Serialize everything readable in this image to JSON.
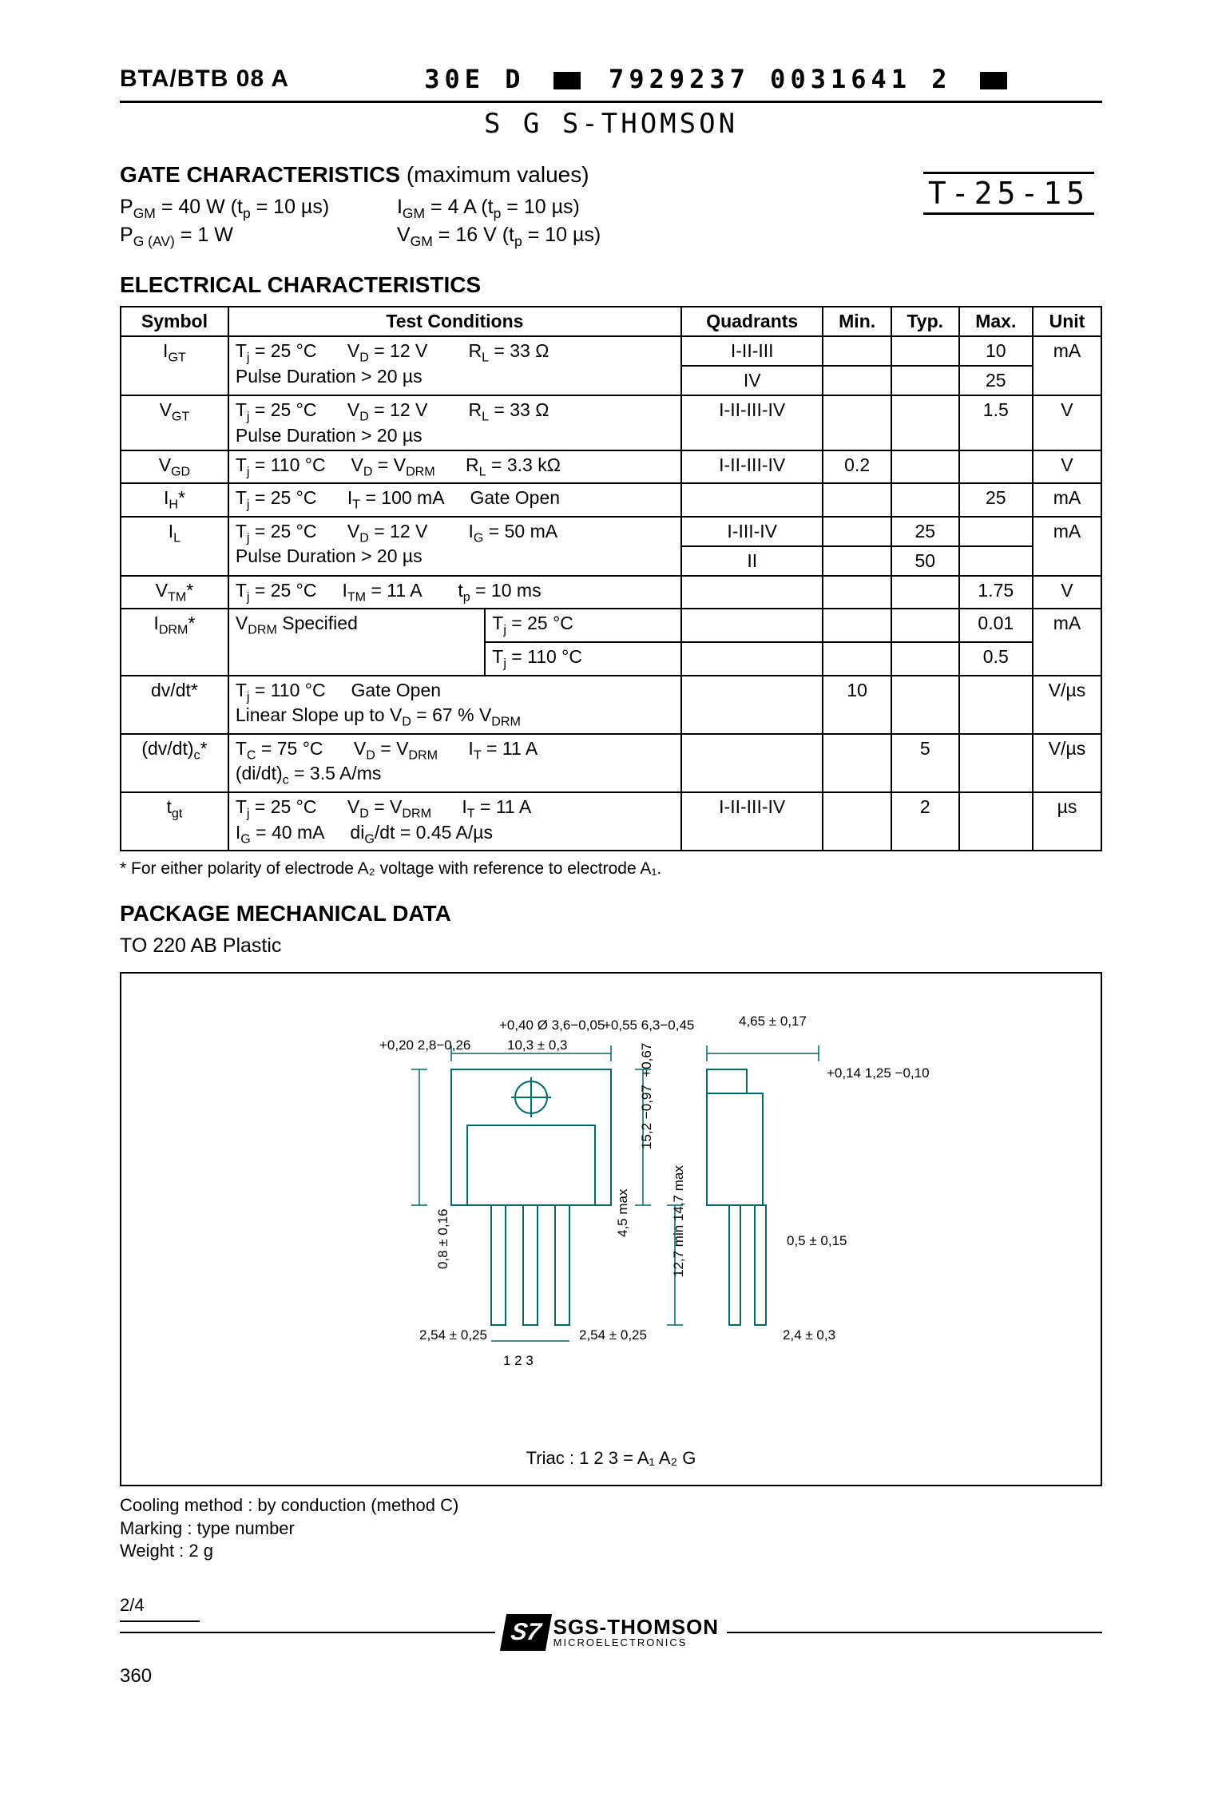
{
  "header": {
    "part": "BTA/BTB 08 A",
    "code_a": "30E  D",
    "code_b": "7929237 0031641 2",
    "brand_scan": "S G S-THOMSON",
    "tcode": "T-25-15"
  },
  "gate": {
    "title": "GATE CHARACTERISTICS",
    "subtitle": "(maximum values)",
    "pgm": "P<sub>GM</sub> = 40 W (t<sub>p</sub> = 10 µs)",
    "pgav": "P<sub>G (AV)</sub> = 1 W",
    "igm": "I<sub>GM</sub> = 4 A (t<sub>p</sub> = 10 µs)",
    "vgm": "V<sub>GM</sub> = 16 V (t<sub>p</sub> = 10 µs)"
  },
  "elec_title": "ELECTRICAL  CHARACTERISTICS",
  "elec_headers": [
    "Symbol",
    "Test Conditions",
    "Quadrants",
    "Min.",
    "Typ.",
    "Max.",
    "Unit"
  ],
  "rows": [
    {
      "sym": "I<sub>GT</sub>",
      "cond": "T<sub>j</sub> = 25 °C&nbsp;&nbsp;&nbsp;&nbsp;&nbsp;&nbsp;V<sub>D</sub> = 12 V&nbsp;&nbsp;&nbsp;&nbsp;&nbsp;&nbsp;&nbsp;&nbsp;R<sub>L</sub> = 33 Ω<br>Pulse Duration > 20 µs",
      "quad": "I-II-III",
      "min": "",
      "typ": "",
      "max": "10",
      "unit": "mA",
      "sub": [
        {
          "quad": "IV",
          "min": "",
          "typ": "",
          "max": "25"
        }
      ]
    },
    {
      "sym": "V<sub>GT</sub>",
      "cond": "T<sub>j</sub> = 25 °C&nbsp;&nbsp;&nbsp;&nbsp;&nbsp;&nbsp;V<sub>D</sub> = 12 V&nbsp;&nbsp;&nbsp;&nbsp;&nbsp;&nbsp;&nbsp;&nbsp;R<sub>L</sub> = 33 Ω<br>Pulse Duration > 20 µs",
      "quad": "I-II-III-IV",
      "min": "",
      "typ": "",
      "max": "1.5",
      "unit": "V"
    },
    {
      "sym": "V<sub>GD</sub>",
      "cond": "T<sub>j</sub> = 110 °C&nbsp;&nbsp;&nbsp;&nbsp;&nbsp;V<sub>D</sub> = V<sub>DRM</sub>&nbsp;&nbsp;&nbsp;&nbsp;&nbsp;&nbsp;R<sub>L</sub> = 3.3 kΩ",
      "quad": "I-II-III-IV",
      "min": "0.2",
      "typ": "",
      "max": "",
      "unit": "V"
    },
    {
      "sym": "I<sub>H</sub>*",
      "cond": "T<sub>j</sub> = 25 °C&nbsp;&nbsp;&nbsp;&nbsp;&nbsp;&nbsp;I<sub>T</sub> = 100 mA&nbsp;&nbsp;&nbsp;&nbsp;&nbsp;Gate Open",
      "quad": "",
      "min": "",
      "typ": "",
      "max": "25",
      "unit": "mA"
    },
    {
      "sym": "I<sub>L</sub>",
      "cond": "T<sub>j</sub> = 25 °C&nbsp;&nbsp;&nbsp;&nbsp;&nbsp;&nbsp;V<sub>D</sub> = 12 V&nbsp;&nbsp;&nbsp;&nbsp;&nbsp;&nbsp;&nbsp;&nbsp;I<sub>G</sub> = 50 mA<br>Pulse Duration > 20 µs",
      "quad": "I-III-IV",
      "min": "",
      "typ": "25",
      "max": "",
      "unit": "mA",
      "sub": [
        {
          "quad": "II",
          "min": "",
          "typ": "50",
          "max": ""
        }
      ]
    },
    {
      "sym": "V<sub>TM</sub>*",
      "cond": "T<sub>j</sub> =  25 °C&nbsp;&nbsp;&nbsp;&nbsp;&nbsp;I<sub>TM</sub> = 11 A&nbsp;&nbsp;&nbsp;&nbsp;&nbsp;&nbsp;&nbsp;t<sub>p</sub> = 10 ms",
      "quad": "",
      "min": "",
      "typ": "",
      "max": "1.75",
      "unit": "V"
    },
    {
      "sym": "I<sub>DRM</sub>*",
      "cond": "V<sub>DRM</sub> Specified",
      "cond_right": "T<sub>j</sub> =  25 °C",
      "quad": "",
      "min": "",
      "typ": "",
      "max": "0.01",
      "unit": "mA",
      "sub": [
        {
          "cond_right": "T<sub>j</sub> = 110 °C",
          "quad": "",
          "min": "",
          "typ": "",
          "max": "0.5"
        }
      ]
    },
    {
      "sym": "dv/dt*",
      "cond": "T<sub>j</sub> = 110 °C&nbsp;&nbsp;&nbsp;&nbsp;&nbsp;Gate Open<br>Linear Slope up to V<sub>D</sub> = 67 % V<sub>DRM</sub>",
      "quad": "",
      "min": "10",
      "typ": "",
      "max": "",
      "unit": "V/µs"
    },
    {
      "sym": "(dv/dt)<sub>c</sub>*",
      "cond": "T<sub>C</sub> = 75 °C&nbsp;&nbsp;&nbsp;&nbsp;&nbsp;&nbsp;V<sub>D</sub> = V<sub>DRM</sub>&nbsp;&nbsp;&nbsp;&nbsp;&nbsp;&nbsp;I<sub>T</sub> = 11 A<br>(di/dt)<sub>c</sub> = 3.5 A/ms",
      "quad": "",
      "min": "",
      "typ": "5",
      "max": "",
      "unit": "V/µs"
    },
    {
      "sym": "t<sub>gt</sub>",
      "cond": "T<sub>j</sub> = 25 °C&nbsp;&nbsp;&nbsp;&nbsp;&nbsp;&nbsp;V<sub>D</sub> = V<sub>DRM</sub>&nbsp;&nbsp;&nbsp;&nbsp;&nbsp;&nbsp;I<sub>T</sub> = 11 A<br>I<sub>G</sub> = 40 mA&nbsp;&nbsp;&nbsp;&nbsp;&nbsp;di<sub>G</sub>/dt = 0.45 A/µs",
      "quad": "I-II-III-IV",
      "min": "",
      "typ": "2",
      "max": "",
      "unit": "µs"
    }
  ],
  "footnote": "* For either polarity of electrode A₂ voltage with reference to electrode A₁.",
  "pkg": {
    "title": "PACKAGE MECHANICAL DATA",
    "subtitle": "TO 220 AB  Plastic",
    "caption": "Triac     : 1 2 3 = A₁ A₂ G",
    "dims": {
      "w1": "+0,20\n2,8−0,26",
      "hole": "+0,40\nØ 3,6−0,05",
      "w2": "10,3 ± 0,3",
      "h1": "+0,55\n6,3−0,45",
      "tab_w": "4,65 ± 0,17",
      "tab_h1": "+0,14\n1,25 −0,10",
      "body_h": "+0,67\n15,2 −0,97",
      "lead_t": "0,8 ± 0,16",
      "lead_l": "4,5\nmax",
      "pin_l": "12,7 min\n14,7 max",
      "thick": "0,5 ± 0,15",
      "pitch_l": "2,54 ± 0,25",
      "pitch_r": "2,54 ± 0,25",
      "depth": "2,4 ± 0,3",
      "pins": "1  2  3"
    },
    "notes": [
      "Cooling method : by conduction (method C)",
      "Marking : type number",
      "Weight : 2 g"
    ]
  },
  "footer": {
    "pageref": "2/4",
    "logo_main": "SGS-THOMSON",
    "logo_sub": "MICROELECTRONICS",
    "pageno": "360"
  }
}
